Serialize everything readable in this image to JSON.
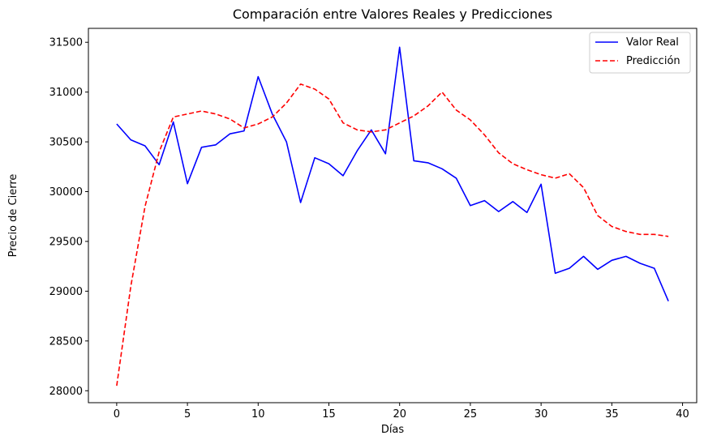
{
  "chart_data": {
    "type": "line",
    "title": "Comparación entre Valores Reales y Predicciones",
    "xlabel": "Días",
    "ylabel": "Precio de Cierre",
    "xlim": [
      -2,
      41
    ],
    "ylim": [
      27880,
      31640
    ],
    "xticks": [
      0,
      5,
      10,
      15,
      20,
      25,
      30,
      35,
      40
    ],
    "yticks": [
      28000,
      28500,
      29000,
      29500,
      30000,
      30500,
      31000,
      31500
    ],
    "grid": false,
    "legend_position": "top-right",
    "x": [
      0,
      1,
      2,
      3,
      4,
      5,
      6,
      7,
      8,
      9,
      10,
      11,
      12,
      13,
      14,
      15,
      16,
      17,
      18,
      19,
      20,
      21,
      22,
      23,
      24,
      25,
      26,
      27,
      28,
      29,
      30,
      31,
      32,
      33,
      34,
      35,
      36,
      37,
      38,
      39
    ],
    "series": [
      {
        "name": "Valor Real",
        "color": "#0000ff",
        "style": "solid",
        "values": [
          30680,
          30520,
          30460,
          30270,
          30700,
          30080,
          30445,
          30470,
          30580,
          30610,
          31155,
          30780,
          30500,
          29890,
          30340,
          30280,
          30160,
          30410,
          30620,
          30380,
          31450,
          30310,
          30290,
          30230,
          30135,
          29860,
          29910,
          29800,
          29900,
          29790,
          30075,
          29180,
          29230,
          29350,
          29220,
          29310,
          29350,
          29280,
          29230,
          28900
        ]
      },
      {
        "name": "Predicción",
        "color": "#ff0000",
        "style": "dashed",
        "values": [
          28050,
          29050,
          29850,
          30400,
          30750,
          30780,
          30810,
          30780,
          30730,
          30640,
          30680,
          30750,
          30890,
          31080,
          31030,
          30930,
          30690,
          30620,
          30600,
          30620,
          30690,
          30760,
          30860,
          31000,
          30820,
          30720,
          30570,
          30390,
          30280,
          30220,
          30170,
          30135,
          30180,
          30040,
          29760,
          29650,
          29600,
          29570,
          29570,
          29550
        ]
      }
    ]
  }
}
